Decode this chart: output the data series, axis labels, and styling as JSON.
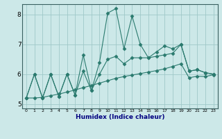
{
  "xlabel": "Humidex (Indice chaleur)",
  "x": [
    0,
    1,
    2,
    3,
    4,
    5,
    6,
    7,
    8,
    9,
    10,
    11,
    12,
    13,
    14,
    15,
    16,
    17,
    18,
    19,
    20,
    21,
    22,
    23
  ],
  "line1": [
    5.2,
    6.0,
    5.2,
    6.0,
    5.25,
    6.0,
    5.3,
    6.65,
    5.45,
    6.4,
    8.05,
    8.2,
    6.85,
    7.95,
    7.0,
    6.55,
    6.75,
    6.95,
    6.85,
    7.0,
    6.1,
    6.15,
    6.05,
    6.0
  ],
  "line2": [
    5.2,
    6.0,
    5.2,
    6.0,
    5.25,
    6.0,
    5.3,
    6.1,
    5.45,
    6.0,
    6.5,
    6.6,
    6.35,
    6.55,
    6.55,
    6.55,
    6.6,
    6.65,
    6.7,
    7.0,
    6.1,
    6.15,
    6.05,
    6.0
  ],
  "line3": [
    5.2,
    5.2,
    5.22,
    5.28,
    5.33,
    5.4,
    5.47,
    5.55,
    5.62,
    5.7,
    5.78,
    5.86,
    5.92,
    5.97,
    6.02,
    6.07,
    6.12,
    6.18,
    6.26,
    6.35,
    5.88,
    5.93,
    5.92,
    5.98
  ],
  "line_color": "#2a7a6e",
  "bg_color": "#cce8e8",
  "grid_color": "#9fc8c8",
  "ylim": [
    4.85,
    8.35
  ],
  "yticks": [
    5,
    6,
    7,
    8
  ],
  "marker": "D",
  "markersize": 2.5,
  "lw": 0.8
}
